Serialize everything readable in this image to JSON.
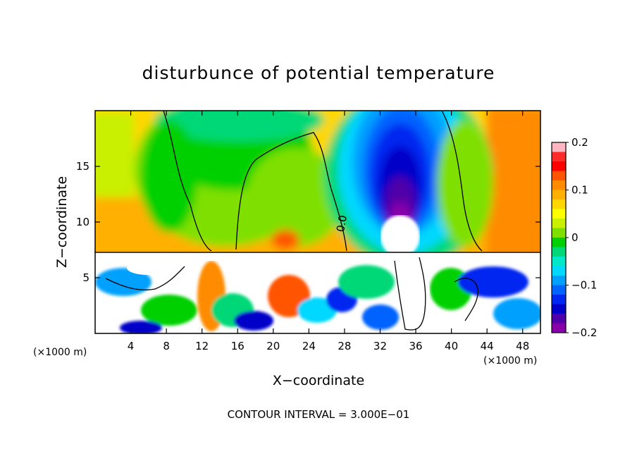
{
  "chart_data": {
    "type": "heatmap",
    "title": "disturbunce of potential temperature",
    "xlabel": "X−coordinate",
    "ylabel": "Z−coordinate",
    "x_unit_left": "(×1000 m)",
    "x_unit_right": "(×1000 m)",
    "xlim": [
      0,
      50
    ],
    "ylim": [
      0,
      20
    ],
    "x_ticks": [
      4,
      8,
      12,
      16,
      20,
      24,
      28,
      32,
      36,
      40,
      44,
      48
    ],
    "y_ticks": [
      5,
      10,
      15
    ],
    "colorbar": {
      "range": [
        -0.2,
        0.2
      ],
      "tick_values": [
        0.2,
        0.1,
        0,
        -0.1,
        -0.2
      ],
      "tick_labels": [
        "0.2",
        "0.1",
        "0",
        "−0.1",
        "−0.2"
      ],
      "colors": [
        "#ffb6c1",
        "#ff2a2a",
        "#ff0000",
        "#ff5500",
        "#ff8c00",
        "#ffb000",
        "#ffd700",
        "#ffff00",
        "#c8f000",
        "#7fe000",
        "#00d000",
        "#00d878",
        "#00e8c8",
        "#00d8ff",
        "#00a0ff",
        "#0064ff",
        "#0028f0",
        "#0000c8",
        "#5000a8",
        "#8800aa"
      ]
    },
    "contour_label": "0.0",
    "footer": "CONTOUR INTERVAL = 3.000E−01"
  }
}
